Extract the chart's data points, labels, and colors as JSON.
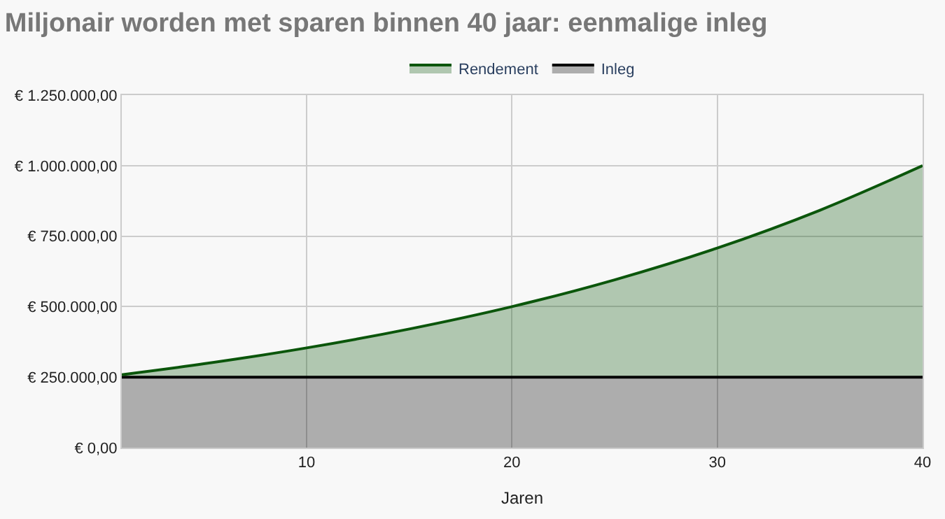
{
  "chart_data": {
    "type": "area",
    "title": "Miljonair worden met sparen binnen 40 jaar: eenmalige inleg",
    "xlabel": "Jaren",
    "stacked": true,
    "x": [
      1,
      5,
      10,
      15,
      20,
      25,
      30,
      35,
      40
    ],
    "series": [
      {
        "name": "Inleg",
        "color": "#000000",
        "values": [
          250000,
          250000,
          250000,
          250000,
          250000,
          250000,
          250000,
          250000,
          250000
        ]
      },
      {
        "name": "Rendement",
        "color": "#0b560b",
        "values": [
          8800,
          47400,
          103700,
          170700,
          250000,
          345100,
          457800,
          591900,
          750000
        ]
      }
    ],
    "xlim": [
      1,
      40
    ],
    "xticks": [
      10,
      20,
      30,
      40
    ],
    "ylim": [
      0,
      1250000
    ],
    "yticks": [
      {
        "value": 0,
        "label": "€ 0,00"
      },
      {
        "value": 250000,
        "label": "€ 250.000,00"
      },
      {
        "value": 500000,
        "label": "€ 500.000,00"
      },
      {
        "value": 750000,
        "label": "€ 750.000,00"
      },
      {
        "value": 1000000,
        "label": "€ 1.000.000,00"
      },
      {
        "value": 1250000,
        "label": "€ 1.250.000,00"
      }
    ],
    "grid": true,
    "legend": "top"
  }
}
